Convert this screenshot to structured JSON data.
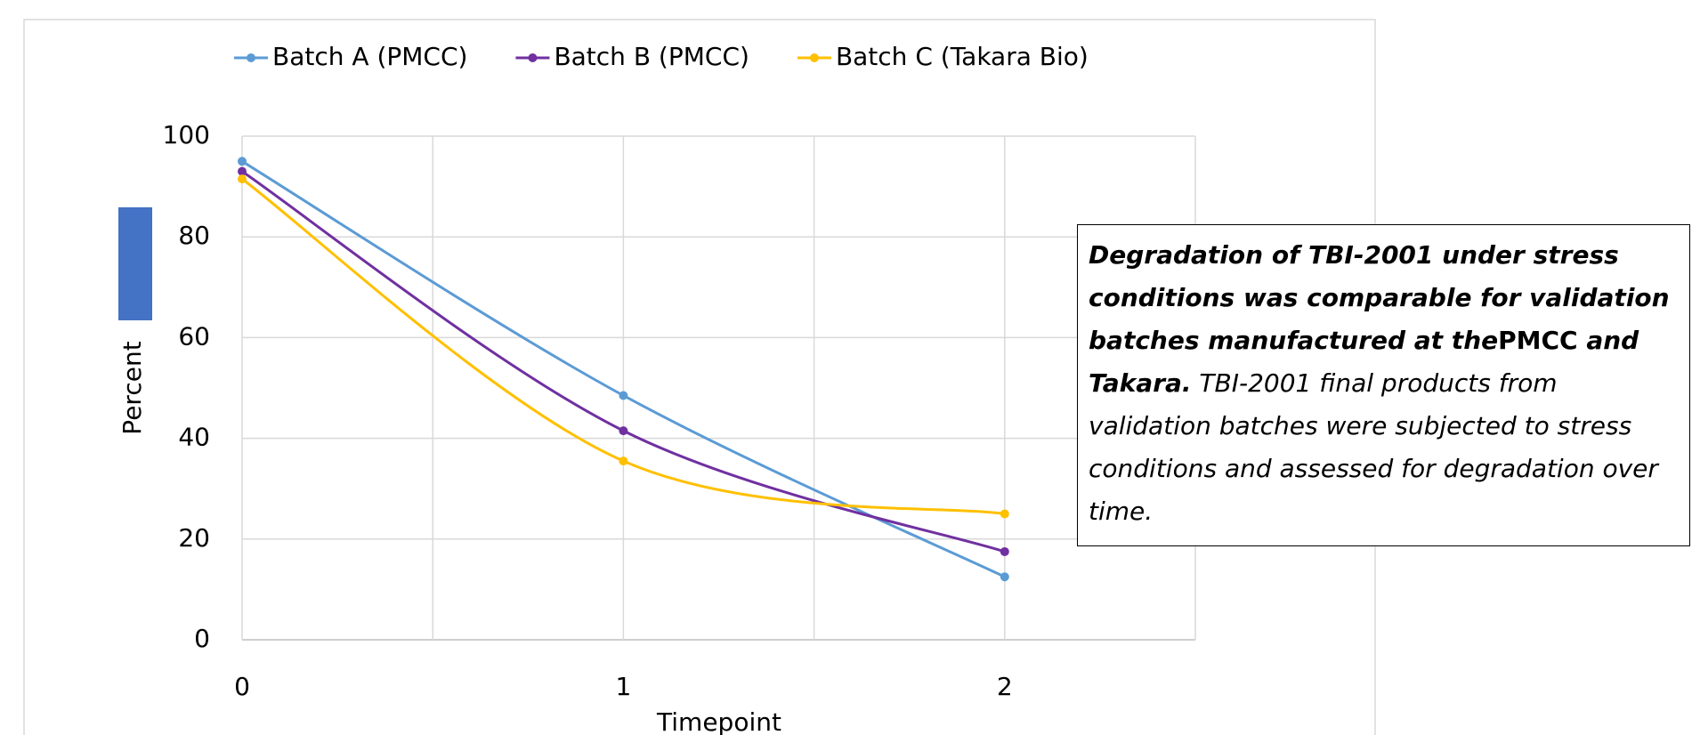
{
  "chart_data": {
    "type": "line",
    "smooth": true,
    "x": [
      0,
      1,
      2
    ],
    "series": [
      {
        "name": "Batch A (PMCC)",
        "color": "#5b9bd5",
        "values": [
          95,
          48.5,
          12.5
        ]
      },
      {
        "name": "Batch B (PMCC)",
        "color": "#7030a0",
        "values": [
          93,
          41.5,
          17.5
        ]
      },
      {
        "name": "Batch C (Takara Bio)",
        "color": "#ffc000",
        "values": [
          91.5,
          35.5,
          25
        ]
      }
    ],
    "xlim": [
      0,
      2.5
    ],
    "xticks": [
      0,
      1,
      2
    ],
    "minor_grid": true,
    "ylim": [
      0,
      100
    ],
    "yticks": [
      0,
      20,
      40,
      60,
      80,
      100
    ],
    "grid": true,
    "xlabel": "Timepoint",
    "ylabel": "Percent",
    "legend": "top",
    "annotation": [
      {
        "text": "Degradation of TBI-2001 under stress conditions was comparable for validation batches manufactured at the",
        "style": "bold-italic"
      },
      {
        "text": "PMCC",
        "style": "bold"
      },
      {
        "text": " and Takara.",
        "style": "bold-italic"
      },
      {
        "text": " TBI-2001 final products from validation batches were subjected to stress conditions and assessed for degradation over time.",
        "style": "italic"
      }
    ]
  }
}
